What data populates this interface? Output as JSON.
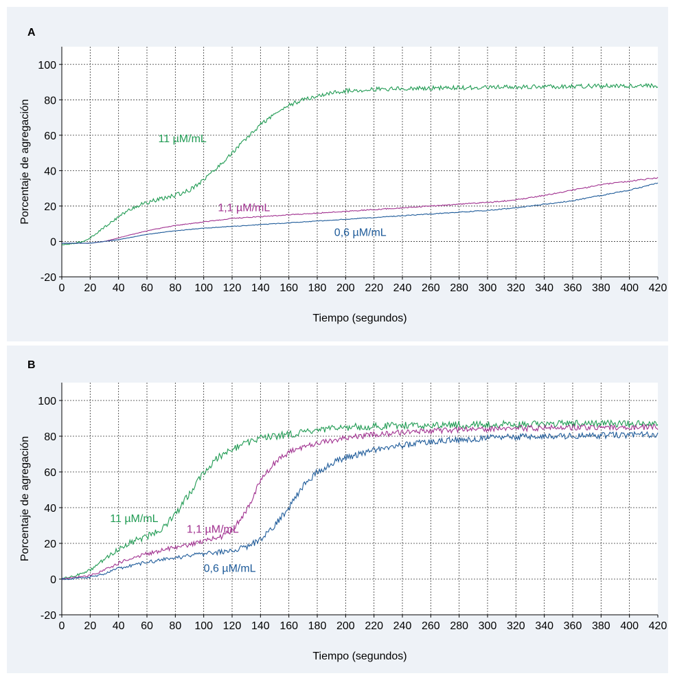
{
  "colors": {
    "panel_bg": "#eef2f7",
    "plot_bg": "#ffffff",
    "grid": "#333333",
    "green": "#1f9a52",
    "magenta": "#a0308f",
    "blue": "#1d5a99"
  },
  "chart_data": [
    {
      "type": "line",
      "panel_label": "A",
      "xlabel": "Tiempo (segundos)",
      "ylabel": "Porcentaje de agregación",
      "xlim": [
        0,
        420
      ],
      "ylim": [
        -20,
        110
      ],
      "xticks": [
        0,
        20,
        40,
        60,
        80,
        100,
        120,
        140,
        160,
        180,
        200,
        220,
        240,
        260,
        280,
        300,
        320,
        340,
        360,
        380,
        400,
        420
      ],
      "yticks": [
        -20,
        0,
        20,
        40,
        60,
        80,
        100
      ],
      "grid": true,
      "series": [
        {
          "name": "11 µM/mL",
          "color": "#1f9a52",
          "label_at": [
            68,
            56
          ],
          "noise": 1.2,
          "points": [
            [
              0,
              -2
            ],
            [
              10,
              -1
            ],
            [
              15,
              0
            ],
            [
              20,
              2
            ],
            [
              30,
              8
            ],
            [
              40,
              14
            ],
            [
              50,
              19
            ],
            [
              60,
              22
            ],
            [
              70,
              24
            ],
            [
              80,
              26
            ],
            [
              90,
              29
            ],
            [
              100,
              35
            ],
            [
              110,
              42
            ],
            [
              120,
              50
            ],
            [
              130,
              58
            ],
            [
              140,
              66
            ],
            [
              150,
              72
            ],
            [
              160,
              77
            ],
            [
              170,
              80
            ],
            [
              180,
              82
            ],
            [
              190,
              84
            ],
            [
              200,
              85
            ],
            [
              220,
              86
            ],
            [
              250,
              86.5
            ],
            [
              300,
              87
            ],
            [
              350,
              87.5
            ],
            [
              400,
              88
            ],
            [
              420,
              88
            ]
          ]
        },
        {
          "name": "1,1 µM/mL",
          "color": "#a0308f",
          "label_at": [
            110,
            17
          ],
          "noise": 0.35,
          "points": [
            [
              0,
              -1
            ],
            [
              20,
              -1
            ],
            [
              30,
              0
            ],
            [
              40,
              2
            ],
            [
              60,
              6
            ],
            [
              80,
              9
            ],
            [
              100,
              11
            ],
            [
              120,
              13
            ],
            [
              140,
              14
            ],
            [
              160,
              15
            ],
            [
              180,
              16
            ],
            [
              200,
              17
            ],
            [
              220,
              18
            ],
            [
              240,
              19
            ],
            [
              260,
              20
            ],
            [
              280,
              21
            ],
            [
              300,
              22
            ],
            [
              320,
              23.5
            ],
            [
              340,
              26
            ],
            [
              360,
              29
            ],
            [
              380,
              32
            ],
            [
              400,
              34
            ],
            [
              420,
              36
            ]
          ]
        },
        {
          "name": "0,6 µM/mL",
          "color": "#1d5a99",
          "label_at": [
            192,
            3
          ],
          "noise": 0.3,
          "points": [
            [
              0,
              -1
            ],
            [
              20,
              -1
            ],
            [
              30,
              0
            ],
            [
              40,
              1
            ],
            [
              60,
              4
            ],
            [
              80,
              6
            ],
            [
              100,
              7.5
            ],
            [
              120,
              8.5
            ],
            [
              140,
              9.5
            ],
            [
              160,
              10.5
            ],
            [
              180,
              11.5
            ],
            [
              200,
              12.5
            ],
            [
              220,
              13.5
            ],
            [
              240,
              14.5
            ],
            [
              260,
              15.5
            ],
            [
              280,
              16.5
            ],
            [
              300,
              17.5
            ],
            [
              320,
              19
            ],
            [
              340,
              21
            ],
            [
              360,
              23
            ],
            [
              380,
              26
            ],
            [
              400,
              29
            ],
            [
              420,
              33
            ]
          ]
        }
      ]
    },
    {
      "type": "line",
      "panel_label": "B",
      "xlabel": "Tiempo (segundos)",
      "ylabel": "Porcentaje de agregación",
      "xlim": [
        0,
        420
      ],
      "ylim": [
        -20,
        110
      ],
      "xticks": [
        0,
        20,
        40,
        60,
        80,
        100,
        120,
        140,
        160,
        180,
        200,
        220,
        240,
        260,
        280,
        300,
        320,
        340,
        360,
        380,
        400,
        420
      ],
      "yticks": [
        -20,
        0,
        20,
        40,
        60,
        80,
        100
      ],
      "grid": true,
      "series": [
        {
          "name": "11 µM/mL",
          "color": "#1f9a52",
          "label_at": [
            34,
            32
          ],
          "noise": 2.0,
          "points": [
            [
              0,
              0
            ],
            [
              10,
              2
            ],
            [
              20,
              5
            ],
            [
              30,
              11
            ],
            [
              40,
              17
            ],
            [
              50,
              21
            ],
            [
              60,
              24
            ],
            [
              70,
              28
            ],
            [
              80,
              36
            ],
            [
              90,
              48
            ],
            [
              100,
              60
            ],
            [
              110,
              68
            ],
            [
              120,
              73
            ],
            [
              130,
              76
            ],
            [
              140,
              79
            ],
            [
              160,
              81
            ],
            [
              180,
              83
            ],
            [
              200,
              85
            ],
            [
              240,
              86
            ],
            [
              300,
              86.5
            ],
            [
              360,
              87
            ],
            [
              420,
              87
            ]
          ]
        },
        {
          "name": "1,1 µM/mL",
          "color": "#a0308f",
          "label_at": [
            88,
            26
          ],
          "noise": 1.6,
          "points": [
            [
              0,
              0
            ],
            [
              10,
              1
            ],
            [
              20,
              2
            ],
            [
              30,
              5
            ],
            [
              40,
              9
            ],
            [
              50,
              12
            ],
            [
              60,
              14
            ],
            [
              70,
              16
            ],
            [
              80,
              18
            ],
            [
              90,
              19.5
            ],
            [
              100,
              21
            ],
            [
              110,
              23
            ],
            [
              120,
              27
            ],
            [
              130,
              38
            ],
            [
              140,
              55
            ],
            [
              150,
              65
            ],
            [
              160,
              71
            ],
            [
              180,
              76
            ],
            [
              200,
              79
            ],
            [
              220,
              81
            ],
            [
              240,
              82
            ],
            [
              260,
              83
            ],
            [
              300,
              84
            ],
            [
              360,
              85
            ],
            [
              420,
              85
            ]
          ]
        },
        {
          "name": "0,6 µM/mL",
          "color": "#1d5a99",
          "label_at": [
            100,
            4
          ],
          "noise": 1.8,
          "points": [
            [
              0,
              0
            ],
            [
              10,
              0.5
            ],
            [
              20,
              1
            ],
            [
              30,
              3
            ],
            [
              40,
              6
            ],
            [
              60,
              9.5
            ],
            [
              80,
              12
            ],
            [
              100,
              14
            ],
            [
              120,
              16
            ],
            [
              130,
              18
            ],
            [
              140,
              22
            ],
            [
              150,
              30
            ],
            [
              160,
              40
            ],
            [
              170,
              52
            ],
            [
              180,
              60
            ],
            [
              190,
              65
            ],
            [
              200,
              68
            ],
            [
              220,
              72
            ],
            [
              240,
              75
            ],
            [
              260,
              77
            ],
            [
              280,
              78
            ],
            [
              300,
              79
            ],
            [
              340,
              80
            ],
            [
              380,
              80.5
            ],
            [
              420,
              81
            ]
          ]
        }
      ]
    }
  ]
}
